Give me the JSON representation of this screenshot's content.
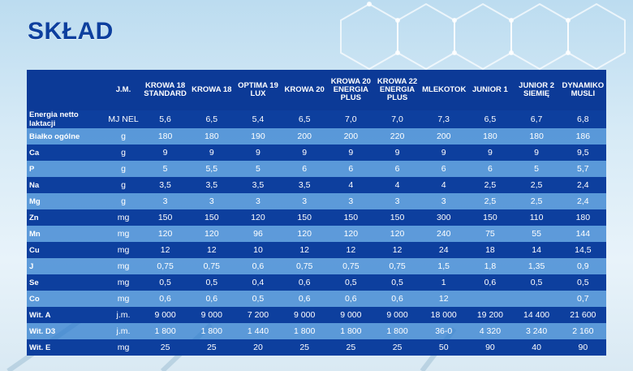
{
  "title": "SKŁAD",
  "headers": [
    "",
    "J.M.",
    "KROWA 18 STANDARD",
    "KROWA 18",
    "OPTIMA 19 LUX",
    "KROWA 20",
    "KROWA 20 ENERGIA PLUS",
    "KROWA 22 ENERGIA PLUS",
    "MLEKOTOK",
    "JUNIOR 1",
    "JUNIOR 2 SIEMIĘ",
    "DYNAMIKO MUSLI"
  ],
  "rows": [
    [
      "Energia netto laktacji",
      "MJ NEL",
      "5,6",
      "6,5",
      "5,4",
      "6,5",
      "7,0",
      "7,0",
      "7,3",
      "6,5",
      "6,7",
      "6,8"
    ],
    [
      "Białko ogólne",
      "g",
      "180",
      "180",
      "190",
      "200",
      "200",
      "220",
      "200",
      "180",
      "180",
      "186"
    ],
    [
      "Ca",
      "g",
      "9",
      "9",
      "9",
      "9",
      "9",
      "9",
      "9",
      "9",
      "9",
      "9,5"
    ],
    [
      "P",
      "g",
      "5",
      "5,5",
      "5",
      "6",
      "6",
      "6",
      "6",
      "6",
      "5",
      "5,7"
    ],
    [
      "Na",
      "g",
      "3,5",
      "3,5",
      "3,5",
      "3,5",
      "4",
      "4",
      "4",
      "2,5",
      "2,5",
      "2,4"
    ],
    [
      "Mg",
      "g",
      "3",
      "3",
      "3",
      "3",
      "3",
      "3",
      "3",
      "2,5",
      "2,5",
      "2,4"
    ],
    [
      "Zn",
      "mg",
      "150",
      "150",
      "120",
      "150",
      "150",
      "150",
      "300",
      "150",
      "110",
      "180"
    ],
    [
      "Mn",
      "mg",
      "120",
      "120",
      "96",
      "120",
      "120",
      "120",
      "240",
      "75",
      "55",
      "144"
    ],
    [
      "Cu",
      "mg",
      "12",
      "12",
      "10",
      "12",
      "12",
      "12",
      "24",
      "18",
      "14",
      "14,5"
    ],
    [
      "J",
      "mg",
      "0,75",
      "0,75",
      "0,6",
      "0,75",
      "0,75",
      "0,75",
      "1,5",
      "1,8",
      "1,35",
      "0,9"
    ],
    [
      "Se",
      "mg",
      "0,5",
      "0,5",
      "0,4",
      "0,6",
      "0,5",
      "0,5",
      "1",
      "0,6",
      "0,5",
      "0,5"
    ],
    [
      "Co",
      "mg",
      "0,6",
      "0,6",
      "0,5",
      "0,6",
      "0,6",
      "0,6",
      "12",
      "",
      "",
      "0,7"
    ],
    [
      "Wit. A",
      "j.m.",
      "9 000",
      "9 000",
      "7 200",
      "9 000",
      "9 000",
      "9 000",
      "18 000",
      "19 200",
      "14 400",
      "21 600"
    ],
    [
      "Wit. D3",
      "j.m.",
      "1 800",
      "1 800",
      "1 440",
      "1 800",
      "1 800",
      "1 800",
      "36-0",
      "4 320",
      "3 240",
      "2 160"
    ],
    [
      "Wit. E",
      "mg",
      "25",
      "25",
      "20",
      "25",
      "25",
      "25",
      "50",
      "90",
      "40",
      "90"
    ]
  ],
  "colors": {
    "header": "#0c3a97",
    "row_dark": "#0d3f9e",
    "row_light": "#2878cd",
    "title": "#0d3f9e"
  }
}
